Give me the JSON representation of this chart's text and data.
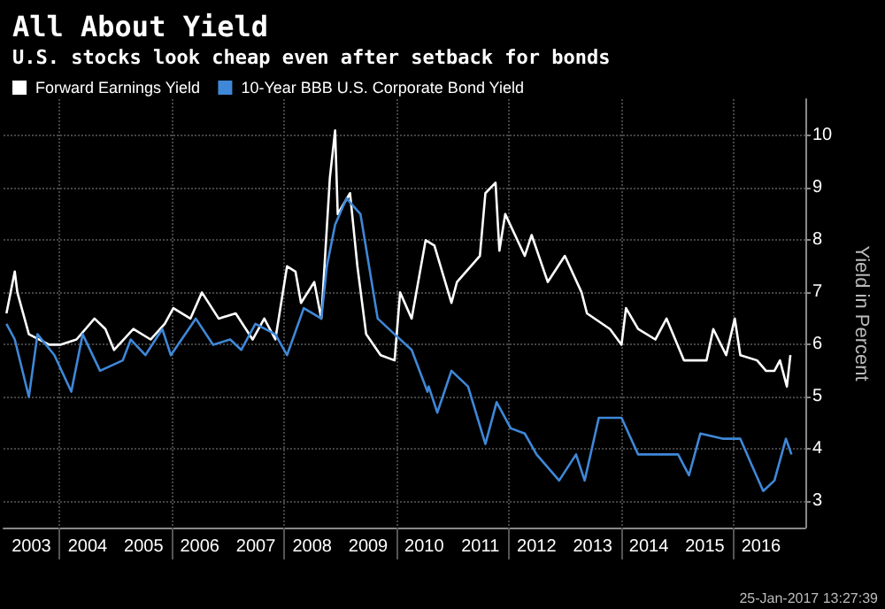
{
  "chart_data": {
    "type": "line",
    "title": "All About Yield",
    "subtitle": "U.S. stocks look cheap even after setback for bonds",
    "ylabel": "Yield in Percent",
    "legend": "top left",
    "grid": true,
    "line_style": "solid",
    "marker": "none",
    "xlim": [
      "2003-01-01",
      "2017-04-15"
    ],
    "xticks": [
      {
        "value": "2003-07-01",
        "label": "2003"
      },
      {
        "value": "2004-01-01",
        "label": null
      },
      {
        "value": "2004-07-01",
        "label": "2004"
      },
      {
        "value": "2005-07-01",
        "label": "2005"
      },
      {
        "value": "2006-01-01",
        "label": null
      },
      {
        "value": "2006-07-01",
        "label": "2006"
      },
      {
        "value": "2007-07-01",
        "label": "2007"
      },
      {
        "value": "2008-01-01",
        "label": null
      },
      {
        "value": "2008-07-01",
        "label": "2008"
      },
      {
        "value": "2009-07-01",
        "label": "2009"
      },
      {
        "value": "2010-01-01",
        "label": null
      },
      {
        "value": "2010-07-01",
        "label": "2010"
      },
      {
        "value": "2011-07-01",
        "label": "2011"
      },
      {
        "value": "2012-01-01",
        "label": null
      },
      {
        "value": "2012-07-01",
        "label": "2012"
      },
      {
        "value": "2013-07-01",
        "label": "2013"
      },
      {
        "value": "2014-01-01",
        "label": null
      },
      {
        "value": "2014-07-01",
        "label": "2014"
      },
      {
        "value": "2015-07-01",
        "label": "2015"
      },
      {
        "value": "2016-01-01",
        "label": null
      },
      {
        "value": "2016-07-01",
        "label": "2016"
      }
    ],
    "ylim": [
      2.5,
      10.7
    ],
    "yticks": [
      3,
      4,
      5,
      6,
      7,
      8,
      9,
      10
    ],
    "annotations": [
      "25-Jan-2017 13:27:39"
    ],
    "series": [
      {
        "name": "Forward Earnings Yield",
        "color": "#ffffff",
        "x": [
          "2003-01-20",
          "2003-03-15",
          "2003-04-01",
          "2003-06-15",
          "2003-10-25",
          "2004-01-05",
          "2004-04-20",
          "2004-08-15",
          "2004-10-25",
          "2004-12-20",
          "2005-04-25",
          "2005-08-15",
          "2005-11-15",
          "2006-01-10",
          "2006-05-01",
          "2006-07-15",
          "2006-11-01",
          "2007-02-20",
          "2007-06-10",
          "2007-08-25",
          "2007-11-05",
          "2008-01-20",
          "2008-03-15",
          "2008-04-20",
          "2008-07-15",
          "2008-08-30",
          "2008-10-25",
          "2008-11-28",
          "2008-12-15",
          "2009-03-05",
          "2009-04-22",
          "2009-06-18",
          "2009-09-20",
          "2009-12-20",
          "2010-01-25",
          "2010-04-10",
          "2010-07-10",
          "2010-09-05",
          "2010-12-25",
          "2011-01-30",
          "2011-06-28",
          "2011-08-03",
          "2011-10-08",
          "2011-11-02",
          "2011-12-10",
          "2012-04-15",
          "2012-05-30",
          "2012-09-12",
          "2013-01-01",
          "2013-04-20",
          "2013-05-25",
          "2013-10-22",
          "2014-01-05",
          "2014-02-03",
          "2014-04-23",
          "2014-08-13",
          "2014-10-25",
          "2015-02-15",
          "2015-07-12",
          "2015-08-25",
          "2015-11-17",
          "2016-01-12",
          "2016-02-17",
          "2016-06-05",
          "2016-08-02",
          "2016-09-26",
          "2016-11-01",
          "2016-12-16",
          "2017-01-08"
        ],
        "values": [
          6.6,
          7.4,
          7.0,
          6.2,
          6.0,
          6.0,
          6.1,
          6.5,
          6.3,
          5.9,
          6.3,
          6.1,
          6.4,
          6.7,
          6.5,
          7.0,
          6.5,
          6.6,
          6.1,
          6.5,
          6.1,
          7.5,
          7.4,
          6.8,
          7.2,
          6.5,
          9.2,
          10.1,
          8.5,
          8.9,
          7.5,
          6.2,
          5.8,
          5.7,
          7.0,
          6.5,
          8.0,
          7.9,
          6.8,
          7.2,
          7.7,
          8.9,
          9.1,
          7.8,
          8.5,
          7.7,
          8.1,
          7.2,
          7.7,
          7.0,
          6.6,
          6.3,
          6.0,
          6.7,
          6.3,
          6.1,
          6.5,
          5.7,
          5.7,
          6.3,
          5.8,
          6.5,
          5.8,
          5.7,
          5.5,
          5.5,
          5.7,
          5.2,
          5.8
        ]
      },
      {
        "name": "10-Year BBB U.S. Corporate Bond Yield",
        "color": "#3f88d8",
        "x": [
          "2003-01-20",
          "2003-03-15",
          "2003-06-15",
          "2003-08-10",
          "2003-11-28",
          "2004-03-17",
          "2004-05-30",
          "2004-09-20",
          "2005-02-15",
          "2005-04-08",
          "2005-07-12",
          "2005-10-30",
          "2005-12-25",
          "2006-06-05",
          "2006-09-26",
          "2007-01-15",
          "2007-03-28",
          "2007-06-28",
          "2007-11-05",
          "2008-01-20",
          "2008-05-08",
          "2008-08-30",
          "2008-10-05",
          "2008-11-28",
          "2009-02-10",
          "2009-05-12",
          "2009-09-01",
          "2009-12-20",
          "2010-04-10",
          "2010-07-22",
          "2010-07-30",
          "2010-09-24",
          "2010-12-25",
          "2011-04-12",
          "2011-08-03",
          "2011-10-15",
          "2012-01-15",
          "2012-04-15",
          "2012-07-01",
          "2012-11-25",
          "2013-03-15",
          "2013-05-10",
          "2013-08-10",
          "2014-01-05",
          "2014-04-23",
          "2014-09-20",
          "2015-01-08",
          "2015-03-20",
          "2015-06-02",
          "2015-10-30",
          "2016-02-17",
          "2016-05-01",
          "2016-07-15",
          "2016-09-26",
          "2016-12-10",
          "2017-01-15"
        ],
        "values": [
          6.4,
          6.1,
          5.0,
          6.2,
          5.8,
          5.1,
          6.2,
          5.5,
          5.7,
          6.1,
          5.8,
          6.3,
          5.8,
          6.5,
          6.0,
          6.1,
          5.9,
          6.4,
          6.2,
          5.8,
          6.7,
          6.5,
          7.5,
          8.3,
          8.8,
          8.5,
          6.5,
          6.2,
          5.9,
          5.1,
          5.2,
          4.7,
          5.5,
          5.2,
          4.1,
          4.9,
          4.4,
          4.3,
          3.9,
          3.4,
          3.9,
          3.4,
          4.6,
          4.6,
          3.9,
          3.9,
          3.9,
          3.5,
          4.3,
          4.2,
          4.2,
          3.7,
          3.2,
          3.4,
          4.2,
          3.9
        ]
      }
    ]
  }
}
